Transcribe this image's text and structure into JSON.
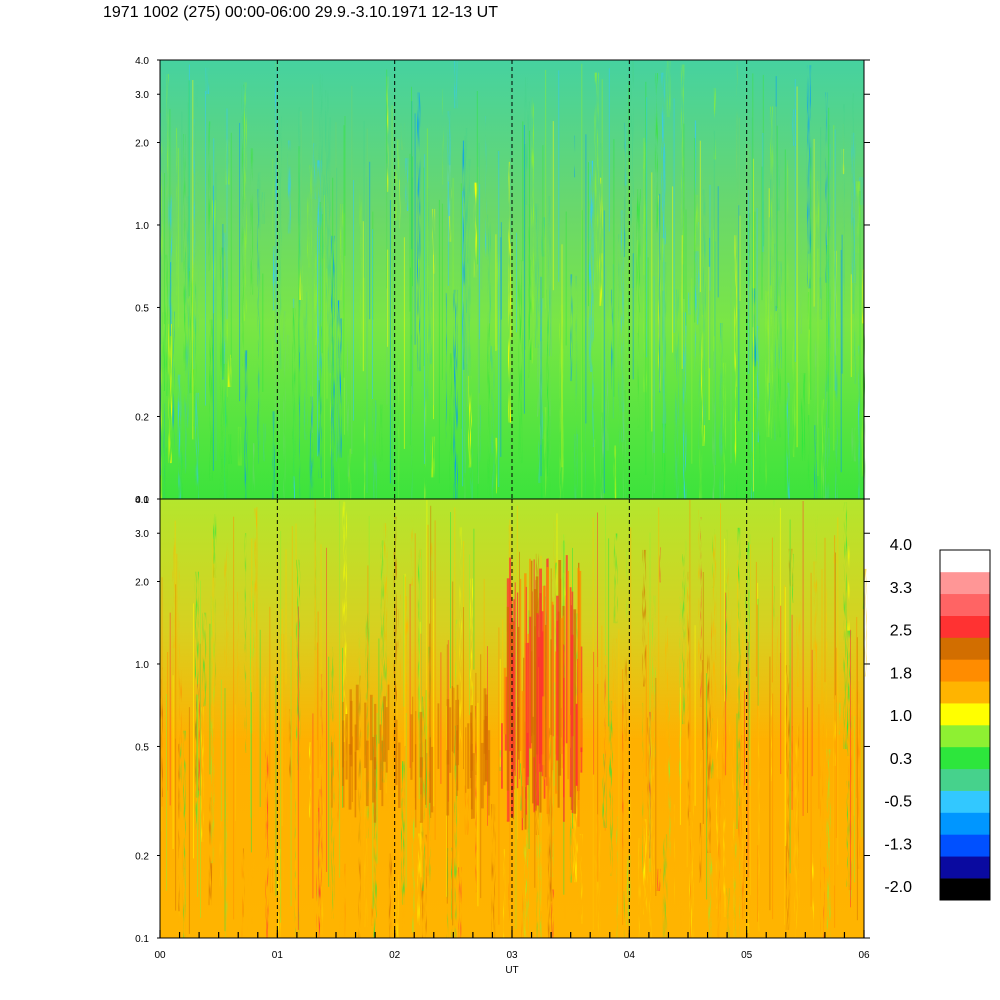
{
  "title": "1971 1002 (275) 00:00-06:00 29.9.-3.10.1971  12-13 UT",
  "chart_data": {
    "type": "heatmap",
    "title": "1971 1002 (275) 00:00-06:00 29.9.-3.10.1971  12-13 UT",
    "xlabel": "UT",
    "ylabel": "",
    "x_ticks": [
      "00",
      "01",
      "02",
      "03",
      "04",
      "05",
      "06"
    ],
    "x_range": [
      0,
      6
    ],
    "hour_markers": [
      1,
      2,
      3,
      4,
      5
    ],
    "y_scale": "log",
    "y_range": [
      0.1,
      4.0
    ],
    "y_ticks": [
      {
        "value": 0.1,
        "label": "0.1"
      },
      {
        "value": 0.2,
        "label": "0.2"
      },
      {
        "value": 0.5,
        "label": "0.5"
      },
      {
        "value": 1.0,
        "label": "1.0"
      },
      {
        "value": 2.0,
        "label": "2.0"
      },
      {
        "value": 3.0,
        "label": "3.0"
      },
      {
        "value": 4.0,
        "label": "4.0"
      }
    ],
    "panels": [
      {
        "name": "",
        "dominant_levels": "0.0 to 1.0",
        "description_colors": [
          "#2de02d",
          "#8ef02d",
          "#4ad08a"
        ]
      },
      {
        "name": "",
        "dominant_levels": "1.0 to 2.5",
        "description_colors": [
          "#ffb400",
          "#ff9000",
          "#d47000"
        ]
      }
    ],
    "colorbar": {
      "tick_labels": [
        "4.0",
        "3.3",
        "2.5",
        "1.8",
        "1.0",
        "0.3",
        "-0.5",
        "-1.3",
        "-2.0"
      ],
      "colors": [
        "#000000",
        "#0a0aa0",
        "#0050ff",
        "#0096ff",
        "#32c8ff",
        "#46d28c",
        "#2de63c",
        "#8ef032",
        "#ffff00",
        "#ffb400",
        "#ff8c00",
        "#d26e00",
        "#ff3232",
        "#ff6464",
        "#ff9696",
        "#ffffff"
      ]
    }
  }
}
